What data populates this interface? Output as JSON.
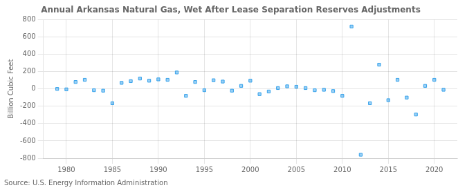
{
  "chart_data": {
    "type": "scatter",
    "title": "Annual Arkansas Natural Gas, Wet After Lease Separation Reserves Adjustments",
    "ylabel": "Billion Cubic Feet",
    "annotations": [
      "Source: U.S. Energy Information Administration"
    ],
    "x": [
      1979,
      1980,
      1981,
      1982,
      1983,
      1984,
      1985,
      1986,
      1987,
      1988,
      1989,
      1990,
      1991,
      1992,
      1993,
      1994,
      1995,
      1996,
      1997,
      1998,
      1999,
      2000,
      2001,
      2002,
      2003,
      2004,
      2005,
      2006,
      2007,
      2008,
      2009,
      2010,
      2011,
      2012,
      2013,
      2014,
      2015,
      2016,
      2017,
      2018,
      2019,
      2020,
      2021
    ],
    "values": [
      0,
      -5,
      80,
      105,
      -15,
      -20,
      -165,
      70,
      90,
      120,
      95,
      110,
      105,
      190,
      -80,
      80,
      -15,
      100,
      85,
      -20,
      35,
      95,
      -60,
      -30,
      10,
      30,
      25,
      10,
      -15,
      -10,
      -25,
      -80,
      720,
      -760,
      -165,
      280,
      -130,
      105,
      -100,
      -295,
      35,
      105,
      -10
    ],
    "marker": "square",
    "xlim": [
      1977.5,
      2022.5
    ],
    "xticks": [
      1980,
      1985,
      1990,
      1995,
      2000,
      2005,
      2010,
      2015,
      2020
    ],
    "ylim": [
      -800,
      800
    ],
    "yticks": [
      -800,
      -600,
      -400,
      -200,
      0,
      200,
      400,
      600,
      800
    ],
    "grid": true
  }
}
